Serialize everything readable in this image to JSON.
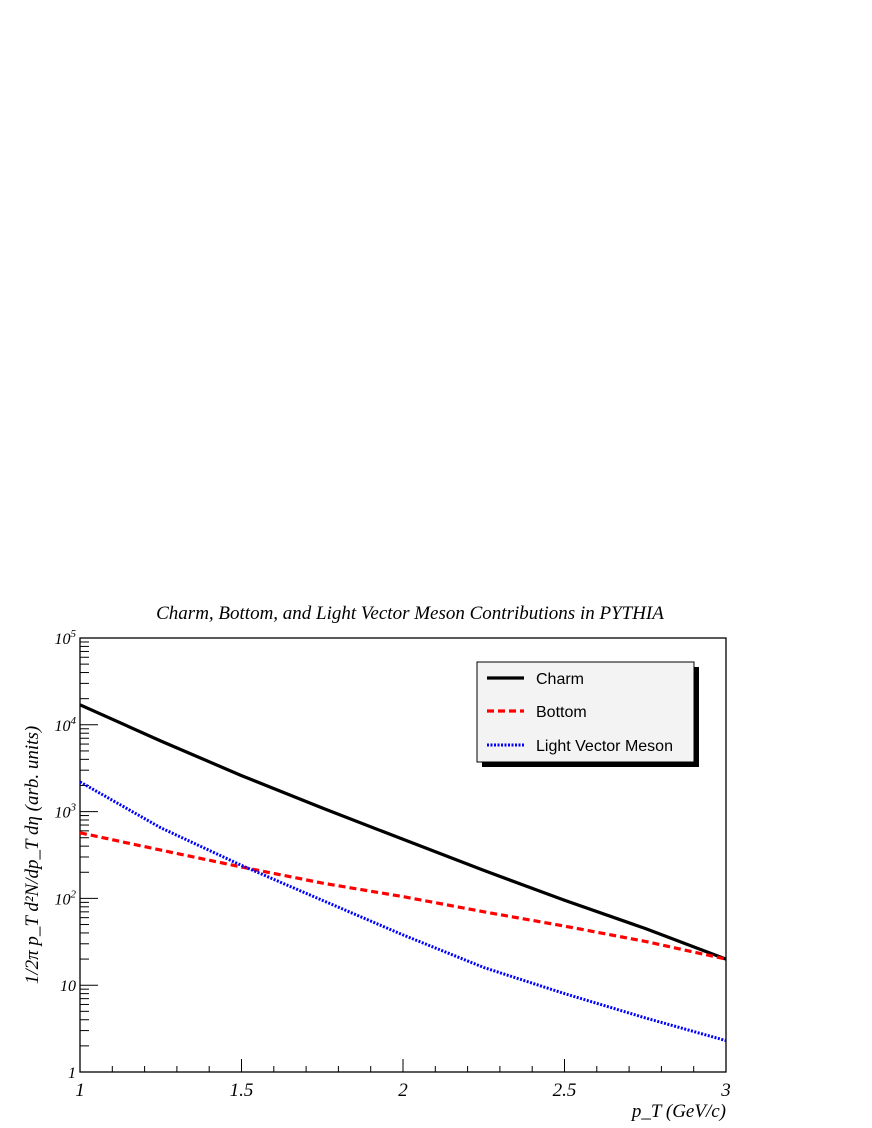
{
  "chart_data": {
    "type": "line",
    "title": "Charm, Bottom, and Light Vector Meson Contributions in PYTHIA",
    "xlabel": "p_T (GeV/c)",
    "ylabel": "1/2π p_T d²N/dp_T dη (arb. units)",
    "xlim": [
      1,
      3
    ],
    "ylim": [
      1,
      100000
    ],
    "yscale": "log",
    "grid": false,
    "legend_position": "top-right",
    "x_ticks": [
      "1",
      "1.5",
      "2",
      "2.5",
      "3"
    ],
    "y_ticks": [
      "1",
      "10",
      "10^2",
      "10^3",
      "10^4",
      "10^5"
    ],
    "x": [
      1.0,
      1.25,
      1.5,
      1.75,
      2.0,
      2.25,
      2.5,
      2.75,
      3.0
    ],
    "series": [
      {
        "name": "Charm",
        "color": "#000000",
        "style": "solid",
        "values": [
          17000,
          6500,
          2600,
          1100,
          480,
          210,
          95,
          45,
          20
        ]
      },
      {
        "name": "Bottom",
        "color": "#ff0000",
        "style": "dashed",
        "values": [
          570,
          360,
          230,
          150,
          105,
          70,
          48,
          32,
          20
        ]
      },
      {
        "name": "Light Vector Meson",
        "color": "#0000ff",
        "style": "dotted",
        "values": [
          2200,
          650,
          240,
          95,
          38,
          16,
          8,
          4.2,
          2.3
        ]
      }
    ]
  }
}
